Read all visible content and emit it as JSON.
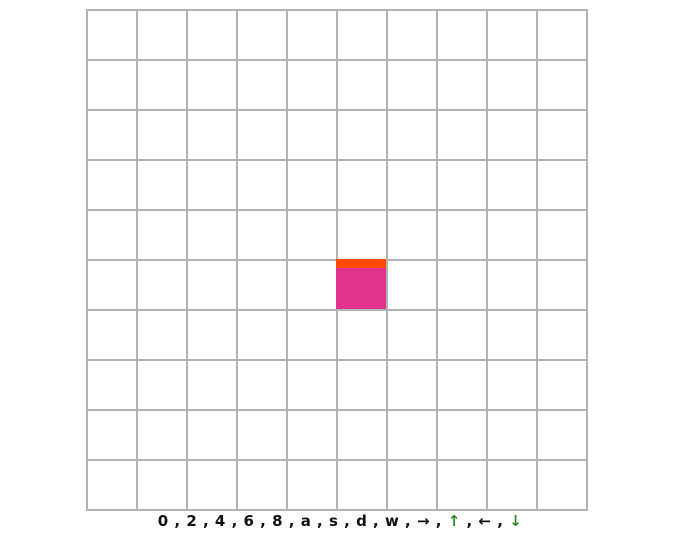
{
  "board": {
    "rows": 10,
    "cols": 10,
    "piece": {
      "row": 5,
      "col": 5,
      "body_color": "#e0338e",
      "head_color": "#ff4b00",
      "facing": "up"
    }
  },
  "controls": {
    "keys": [
      "0",
      "2",
      "4",
      "6",
      "8",
      "a",
      "s",
      "d",
      "w",
      "→",
      "↑",
      "←",
      "↓"
    ],
    "separator": ","
  },
  "colors": {
    "grid_line": "#b3b3b3",
    "arrow_accent": "#2e8b2e"
  }
}
